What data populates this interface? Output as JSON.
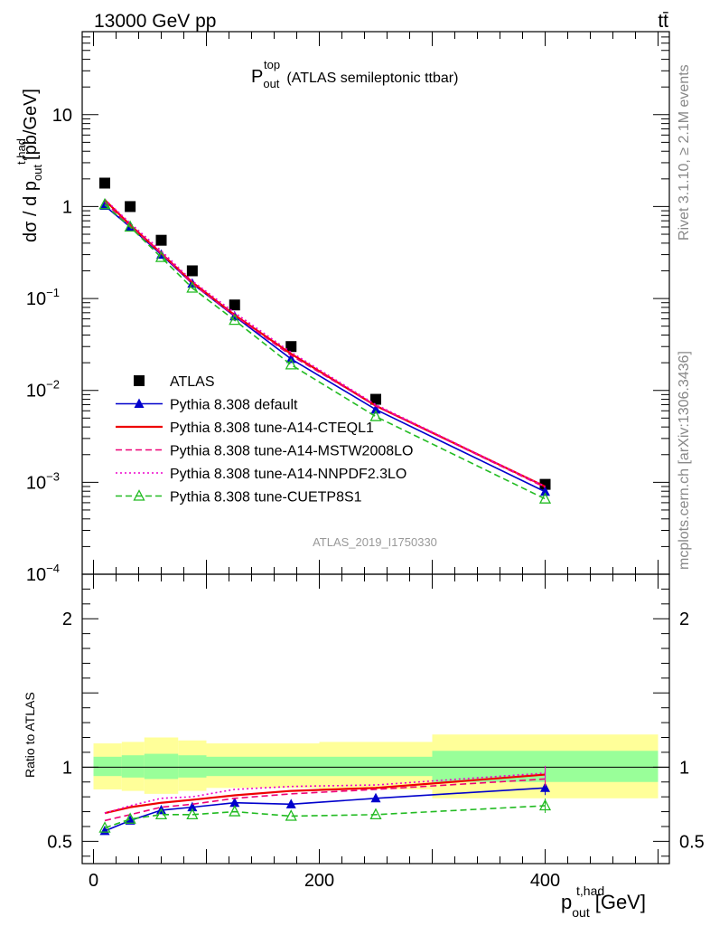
{
  "header": {
    "left": "13000 GeV pp",
    "right": "tt̄",
    "rivet": "Rivet 3.1.10, ≥ 2.1M events",
    "mcplots": "mcplots.cern.ch [arXiv:1306.3436]"
  },
  "plot": {
    "title_main": "P",
    "title_sup": "top",
    "title_sub": "out",
    "title_rest": "(ATLAS semileptonic ttbar)",
    "analysis_id": "ATLAS_2019_I1750330",
    "ylabel_main": "dσ / d p",
    "ylabel_sup": "t,had",
    "ylabel_sub": "out",
    "ylabel_unit": "[pb/GeV]",
    "ratio_ylabel": "Ratio to ATLAS",
    "xlabel_main": "p",
    "xlabel_sup": "t,had",
    "xlabel_sub": "out",
    "xlabel_unit": "[GeV]"
  },
  "chart_data": [
    {
      "type": "line",
      "panel": "main",
      "yscale": "log",
      "xlim": [
        -10,
        510
      ],
      "ylim": [
        0.0001,
        80
      ],
      "x_ticks": [
        "0",
        "200",
        "400"
      ],
      "y_ticks": [
        {
          "value": 0.0001,
          "base": "10",
          "exp": "−4"
        },
        {
          "value": 0.001,
          "base": "10",
          "exp": "−3"
        },
        {
          "value": 0.01,
          "base": "10",
          "exp": "−2"
        },
        {
          "value": 0.1,
          "base": "10",
          "exp": "−1"
        },
        {
          "value": 1,
          "base": "1",
          "exp": ""
        },
        {
          "value": 10,
          "base": "10",
          "exp": ""
        }
      ],
      "x": [
        10,
        32.5,
        60,
        87.5,
        125,
        175,
        250,
        400
      ],
      "series": [
        {
          "name": "ATLAS",
          "color": "#000000",
          "marker": "square",
          "line": "none",
          "values": [
            1.8,
            1.0,
            0.43,
            0.2,
            0.085,
            0.03,
            0.008,
            0.00095
          ]
        },
        {
          "name": "Pythia 8.308 default",
          "color": "#0000cc",
          "marker": "triangle",
          "line": "solid",
          "values": [
            1.02,
            0.6,
            0.3,
            0.145,
            0.064,
            0.022,
            0.0062,
            0.00079
          ]
        },
        {
          "name": "Pythia 8.308 tune-A14-CTEQL1",
          "color": "#ee0000",
          "marker": "none",
          "line": "solid",
          "values": [
            1.18,
            0.63,
            0.31,
            0.15,
            0.066,
            0.025,
            0.0068,
            0.0009
          ]
        },
        {
          "name": "Pythia 8.308 tune-A14-MSTW2008LO",
          "color": "#ee0077",
          "marker": "none",
          "line": "dashed",
          "values": [
            1.12,
            0.61,
            0.31,
            0.145,
            0.065,
            0.024,
            0.0068,
            0.00088
          ]
        },
        {
          "name": "Pythia 8.308 tune-A14-NNPDF2.3LO",
          "color": "#ee00cc",
          "marker": "none",
          "line": "dotted",
          "values": [
            1.2,
            0.66,
            0.33,
            0.155,
            0.07,
            0.026,
            0.007,
            0.0009
          ]
        },
        {
          "name": "Pythia 8.308 tune-CUETP8S1",
          "color": "#22bb22",
          "marker": "open-triangle",
          "line": "dashed",
          "values": [
            1.05,
            0.6,
            0.28,
            0.13,
            0.058,
            0.019,
            0.0052,
            0.00066
          ]
        }
      ]
    },
    {
      "type": "line",
      "panel": "ratio",
      "yscale": "linear",
      "xlim": [
        -10,
        510
      ],
      "ylim": [
        0.35,
        2.3
      ],
      "y_ticks": [
        "0.5",
        "1",
        "2"
      ],
      "x": [
        10,
        32.5,
        60,
        87.5,
        125,
        175,
        250,
        400
      ],
      "uncertainty_bands": {
        "bins": [
          [
            0,
            25
          ],
          [
            25,
            45
          ],
          [
            45,
            75
          ],
          [
            75,
            100
          ],
          [
            100,
            150
          ],
          [
            150,
            200
          ],
          [
            200,
            300
          ],
          [
            300,
            500
          ]
        ],
        "stat_green": [
          [
            0.94,
            1.07
          ],
          [
            0.93,
            1.08
          ],
          [
            0.92,
            1.09
          ],
          [
            0.93,
            1.08
          ],
          [
            0.94,
            1.07
          ],
          [
            0.94,
            1.07
          ],
          [
            0.94,
            1.07
          ],
          [
            0.9,
            1.11
          ]
        ],
        "total_yellow": [
          [
            0.85,
            1.16
          ],
          [
            0.84,
            1.17
          ],
          [
            0.82,
            1.2
          ],
          [
            0.84,
            1.18
          ],
          [
            0.86,
            1.16
          ],
          [
            0.86,
            1.16
          ],
          [
            0.85,
            1.17
          ],
          [
            0.79,
            1.22
          ]
        ]
      },
      "series": [
        {
          "name": "Pythia 8.308 default",
          "color": "#0000cc",
          "marker": "triangle",
          "line": "solid",
          "values": [
            0.57,
            0.64,
            0.71,
            0.73,
            0.76,
            0.75,
            0.79,
            0.86
          ]
        },
        {
          "name": "Pythia 8.308 tune-A14-CTEQL1",
          "color": "#ee0000",
          "marker": "none",
          "line": "solid",
          "values": [
            0.69,
            0.73,
            0.76,
            0.78,
            0.81,
            0.84,
            0.86,
            0.95
          ]
        },
        {
          "name": "Pythia 8.308 tune-A14-MSTW2008LO",
          "color": "#ee0077",
          "marker": "none",
          "line": "dashed",
          "values": [
            0.64,
            0.68,
            0.73,
            0.75,
            0.79,
            0.82,
            0.85,
            0.92
          ]
        },
        {
          "name": "Pythia 8.308 tune-A14-NNPDF2.3LO",
          "color": "#ee00cc",
          "marker": "none",
          "line": "dotted",
          "values": [
            0.69,
            0.74,
            0.79,
            0.8,
            0.85,
            0.87,
            0.88,
            0.96
          ]
        },
        {
          "name": "Pythia 8.308 tune-CUETP8S1",
          "color": "#22bb22",
          "marker": "open-triangle",
          "line": "dashed",
          "values": [
            0.59,
            0.65,
            0.68,
            0.68,
            0.7,
            0.67,
            0.68,
            0.74
          ]
        }
      ]
    }
  ]
}
